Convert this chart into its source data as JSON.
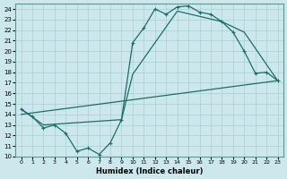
{
  "xlabel": "Humidex (Indice chaleur)",
  "xlim": [
    -0.5,
    23.5
  ],
  "ylim": [
    10,
    24.5
  ],
  "yticks": [
    10,
    11,
    12,
    13,
    14,
    15,
    16,
    17,
    18,
    19,
    20,
    21,
    22,
    23,
    24
  ],
  "xticks": [
    0,
    1,
    2,
    3,
    4,
    5,
    6,
    7,
    8,
    9,
    10,
    11,
    12,
    13,
    14,
    15,
    16,
    17,
    18,
    19,
    20,
    21,
    22,
    23
  ],
  "bg_color": "#cce8ec",
  "line_color": "#1a6e6a",
  "grid_color": "#aacdd4",
  "line1_x": [
    0,
    1,
    2,
    3,
    4,
    5,
    6,
    7,
    8,
    9,
    10,
    11,
    12,
    13,
    14,
    15,
    16,
    17,
    18,
    19,
    20,
    21,
    22,
    23
  ],
  "line1_y": [
    14.5,
    13.8,
    12.7,
    13.0,
    12.2,
    10.5,
    10.8,
    10.2,
    11.3,
    13.5,
    20.8,
    22.2,
    24.0,
    23.5,
    24.2,
    24.3,
    23.7,
    23.5,
    22.8,
    21.8,
    20.0,
    17.9,
    18.0,
    17.2
  ],
  "line2_x": [
    0,
    2,
    9,
    10,
    14,
    18,
    20,
    23
  ],
  "line2_y": [
    14.5,
    13.0,
    13.5,
    17.8,
    23.8,
    22.8,
    21.8,
    17.2
  ],
  "line3_x": [
    0,
    23
  ],
  "line3_y": [
    14.0,
    17.2
  ],
  "marker": "+"
}
